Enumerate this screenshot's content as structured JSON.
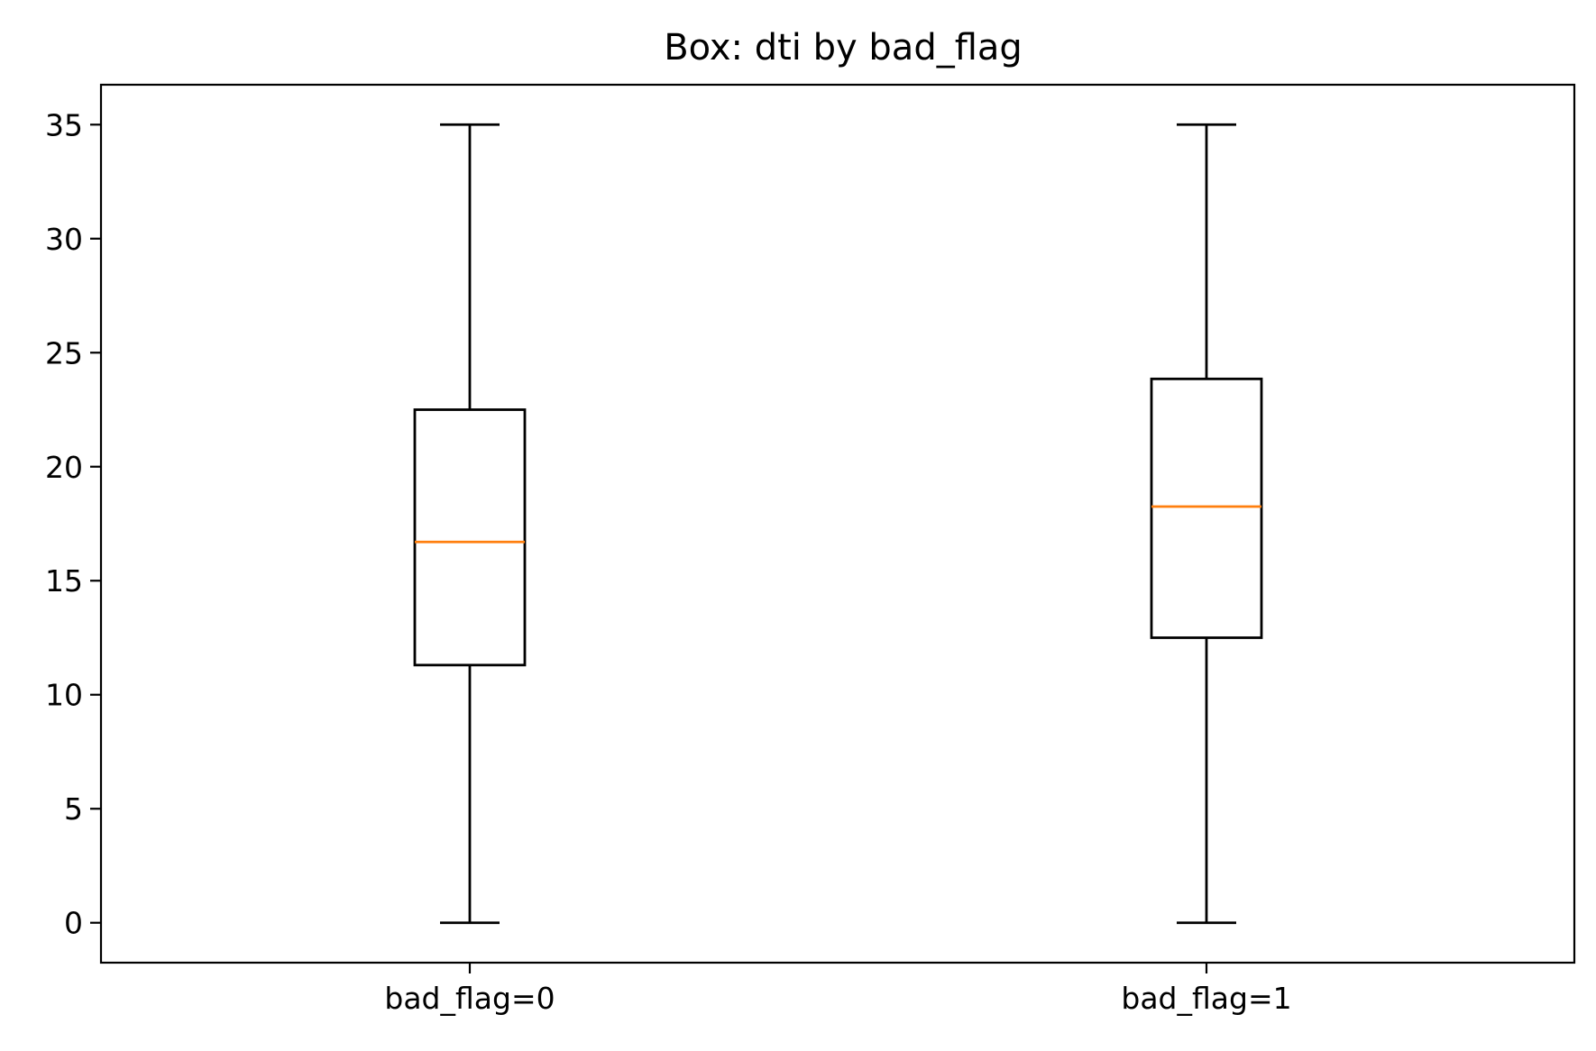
{
  "chart_data": {
    "type": "box",
    "title": "Box: dti by bad_flag",
    "xlabel": "",
    "ylabel": "",
    "categories": [
      "bad_flag=0",
      "bad_flag=1"
    ],
    "boxes": [
      {
        "category": "bad_flag=0",
        "whisker_low": 0,
        "q1": 11.3,
        "median": 16.7,
        "q3": 22.5,
        "whisker_high": 35
      },
      {
        "category": "bad_flag=1",
        "whisker_low": 0,
        "q1": 12.5,
        "median": 18.25,
        "q3": 23.85,
        "whisker_high": 35
      }
    ],
    "y_ticks": [
      0,
      5,
      10,
      15,
      20,
      25,
      30,
      35
    ],
    "y_tick_labels": [
      "0",
      "5",
      "10",
      "15",
      "20",
      "25",
      "30",
      "35"
    ],
    "ylim": [
      -1.75,
      36.75
    ],
    "grid": false,
    "colors": {
      "median": "#ff7f0e",
      "box": "#000000",
      "frame": "#000000",
      "background": "#ffffff"
    }
  }
}
